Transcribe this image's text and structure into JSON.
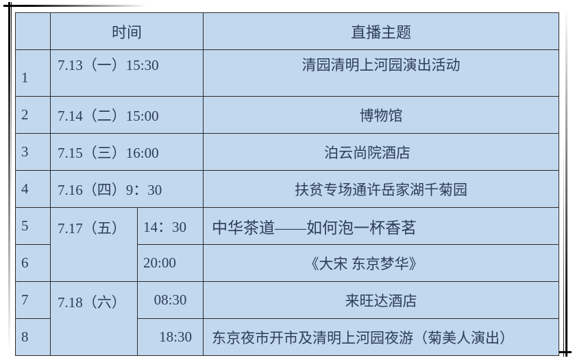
{
  "table": {
    "headers": [
      "",
      "时间",
      "直播主题"
    ],
    "rows": [
      {
        "no": "1",
        "date": "7.13（一）15:30",
        "time": "",
        "topic": "清园清明上河园演出活动"
      },
      {
        "no": "2",
        "date": "7.14（二）15:00",
        "time": "",
        "topic": "博物馆"
      },
      {
        "no": "3",
        "date": "7.15（三）16:00",
        "time": "",
        "topic": "泊云尚院酒店"
      },
      {
        "no": "4",
        "date": "7.16（四）9：30",
        "time": "",
        "topic": "扶贫专场通许岳家湖千菊园"
      },
      {
        "no": "5",
        "date": "7.17（五）",
        "time": "14：30",
        "topic": "中华茶道——如何泡一杯香茗"
      },
      {
        "no": "6",
        "date": "",
        "time": "20:00",
        "topic": "《大宋 东京梦华》"
      },
      {
        "no": "7",
        "date": "7.18（六）",
        "time": "08:30",
        "topic": "来旺达酒店"
      },
      {
        "no": "8",
        "date": "",
        "time": "18:30",
        "topic": "东京夜市开市及清明上河园夜游（菊美人演出）"
      }
    ]
  },
  "colors": {
    "cell_bg": "#c2d8ee",
    "text": "#2c3d5a",
    "border": "#2b2b2b"
  }
}
